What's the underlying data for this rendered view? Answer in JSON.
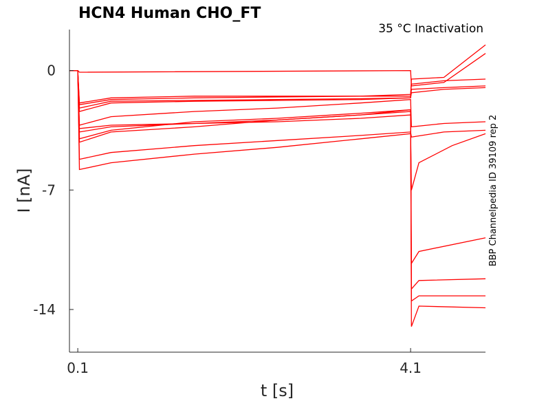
{
  "chart_data": {
    "type": "line",
    "title": "HCN4  Human  CHO_FT",
    "subtitle": "35 °C  Inactivation",
    "xlabel": "t [s]",
    "ylabel": "I [nA]",
    "side_label": "BBP Channelpedia ID 39109 rep 2",
    "xlim": [
      0.0,
      5.0
    ],
    "ylim": [
      -16.5,
      2.4
    ],
    "x_ticks": [
      0.1,
      4.1
    ],
    "x_tick_labels": [
      "0.1",
      "4.1"
    ],
    "y_ticks": [
      0,
      -7,
      -14
    ],
    "y_tick_labels": [
      "0",
      "-7",
      "-14"
    ],
    "trace_color": "#ff0000",
    "series": [
      {
        "values": [
          [
            0.0,
            0
          ],
          [
            0.1,
            0
          ],
          [
            0.12,
            -4.0
          ],
          [
            0.5,
            -3.5
          ],
          [
            1.5,
            -3.0
          ],
          [
            2.5,
            -2.8
          ],
          [
            3.5,
            -2.5
          ],
          [
            4.1,
            -2.3
          ],
          [
            4.11,
            -15.0
          ],
          [
            4.2,
            -13.8
          ],
          [
            5.0,
            -13.9
          ]
        ]
      },
      {
        "values": [
          [
            0.0,
            0
          ],
          [
            0.1,
            0
          ],
          [
            0.12,
            -3.4
          ],
          [
            0.5,
            -3.2
          ],
          [
            1.5,
            -3.1
          ],
          [
            2.5,
            -3.0
          ],
          [
            3.5,
            -2.8
          ],
          [
            4.1,
            -2.6
          ],
          [
            4.11,
            -13.5
          ],
          [
            4.2,
            -13.2
          ],
          [
            5.0,
            -13.2
          ]
        ]
      },
      {
        "values": [
          [
            0.0,
            0
          ],
          [
            0.1,
            0
          ],
          [
            0.12,
            -3.6
          ],
          [
            0.5,
            -3.3
          ],
          [
            1.5,
            -3.1
          ],
          [
            2.5,
            -2.9
          ],
          [
            3.5,
            -2.6
          ],
          [
            4.1,
            -2.4
          ],
          [
            4.11,
            -12.8
          ],
          [
            4.2,
            -12.3
          ],
          [
            5.0,
            -12.2
          ]
        ]
      },
      {
        "values": [
          [
            0.0,
            0
          ],
          [
            0.1,
            0
          ],
          [
            0.12,
            -4.2
          ],
          [
            0.5,
            -3.6
          ],
          [
            1.5,
            -3.3
          ],
          [
            2.5,
            -2.9
          ],
          [
            3.5,
            -2.6
          ],
          [
            4.1,
            -2.3
          ],
          [
            4.11,
            -11.3
          ],
          [
            4.2,
            -10.6
          ],
          [
            5.0,
            -9.8
          ]
        ]
      },
      {
        "values": [
          [
            0.0,
            0
          ],
          [
            0.1,
            0
          ],
          [
            0.12,
            -5.8
          ],
          [
            0.5,
            -5.4
          ],
          [
            1.5,
            -4.9
          ],
          [
            2.5,
            -4.5
          ],
          [
            3.5,
            -4.0
          ],
          [
            4.1,
            -3.7
          ],
          [
            4.11,
            -7.0
          ],
          [
            4.2,
            -5.4
          ],
          [
            4.6,
            -4.4
          ],
          [
            5.0,
            -3.7
          ]
        ]
      },
      {
        "values": [
          [
            0.0,
            0
          ],
          [
            0.1,
            0
          ],
          [
            0.12,
            -5.2
          ],
          [
            0.5,
            -4.8
          ],
          [
            1.5,
            -4.4
          ],
          [
            2.5,
            -4.1
          ],
          [
            3.5,
            -3.8
          ],
          [
            4.1,
            -3.6
          ],
          [
            4.11,
            -3.9
          ],
          [
            4.5,
            -3.6
          ],
          [
            5.0,
            -3.5
          ]
        ]
      },
      {
        "values": [
          [
            0.0,
            0
          ],
          [
            0.1,
            0
          ],
          [
            0.12,
            -3.2
          ],
          [
            0.5,
            -2.7
          ],
          [
            1.5,
            -2.4
          ],
          [
            2.5,
            -2.2
          ],
          [
            3.5,
            -1.9
          ],
          [
            4.1,
            -1.7
          ],
          [
            4.11,
            -3.3
          ],
          [
            4.5,
            -3.1
          ],
          [
            5.0,
            -3.0
          ]
        ]
      },
      {
        "values": [
          [
            0.0,
            0
          ],
          [
            0.1,
            0
          ],
          [
            0.12,
            -2.4
          ],
          [
            0.5,
            -1.9
          ],
          [
            1.5,
            -1.8
          ],
          [
            2.5,
            -1.75
          ],
          [
            3.5,
            -1.7
          ],
          [
            4.1,
            -1.6
          ],
          [
            4.11,
            -1.3
          ],
          [
            4.5,
            -1.1
          ],
          [
            5.0,
            -1.0
          ]
        ]
      },
      {
        "values": [
          [
            0.0,
            0
          ],
          [
            0.1,
            0
          ],
          [
            0.12,
            -2.2
          ],
          [
            0.5,
            -1.8
          ],
          [
            1.5,
            -1.75
          ],
          [
            2.5,
            -1.7
          ],
          [
            3.5,
            -1.65
          ],
          [
            4.1,
            -1.6
          ],
          [
            4.11,
            -1.1
          ],
          [
            4.5,
            -1.0
          ],
          [
            5.0,
            -0.9
          ]
        ]
      },
      {
        "values": [
          [
            0.0,
            0
          ],
          [
            0.1,
            0
          ],
          [
            0.12,
            -2.0
          ],
          [
            0.5,
            -1.7
          ],
          [
            1.5,
            -1.6
          ],
          [
            2.5,
            -1.55
          ],
          [
            3.5,
            -1.5
          ],
          [
            4.1,
            -1.4
          ],
          [
            4.11,
            -0.8
          ],
          [
            4.5,
            -0.6
          ],
          [
            5.0,
            -0.5
          ]
        ]
      },
      {
        "values": [
          [
            0.0,
            0
          ],
          [
            0.1,
            0
          ],
          [
            0.12,
            -1.9
          ],
          [
            0.5,
            -1.6
          ],
          [
            1.5,
            -1.5
          ],
          [
            2.5,
            -1.5
          ],
          [
            3.5,
            -1.5
          ],
          [
            4.1,
            -1.5
          ],
          [
            4.11,
            -0.5
          ],
          [
            4.5,
            -0.4
          ],
          [
            5.0,
            1.5
          ]
        ]
      },
      {
        "values": [
          [
            0.0,
            0
          ],
          [
            0.1,
            0
          ],
          [
            0.12,
            -0.1
          ],
          [
            4.1,
            0
          ],
          [
            4.11,
            -0.9
          ],
          [
            4.5,
            -0.7
          ],
          [
            5.0,
            1.0
          ]
        ]
      }
    ]
  }
}
